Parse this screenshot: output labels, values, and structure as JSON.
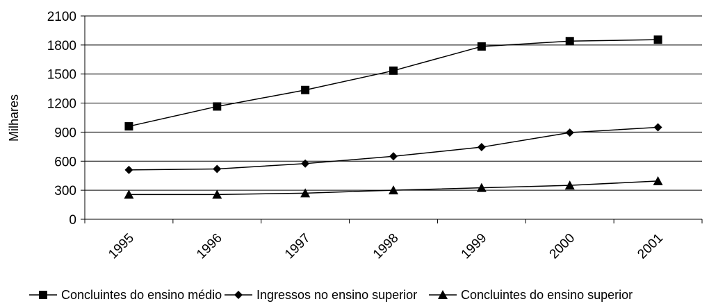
{
  "chart_data": {
    "type": "line",
    "categories": [
      "1995",
      "1996",
      "1997",
      "1998",
      "1999",
      "2000",
      "2001"
    ],
    "series": [
      {
        "name": "Concluintes do ensino médio",
        "marker": "square",
        "values": [
          960,
          1165,
          1335,
          1535,
          1785,
          1840,
          1855
        ]
      },
      {
        "name": "Ingressos no ensino superior",
        "marker": "diamond",
        "values": [
          510,
          520,
          575,
          650,
          745,
          895,
          950
        ]
      },
      {
        "name": "Concluintes do ensino superior",
        "marker": "triangle",
        "values": [
          255,
          255,
          270,
          300,
          325,
          350,
          395
        ]
      }
    ],
    "ylabel": "Milhares",
    "xlabel": "",
    "ylim": [
      0,
      2100
    ],
    "yticks": [
      0,
      300,
      600,
      900,
      1200,
      1500,
      1800,
      2100
    ],
    "grid": "horizontal",
    "legend": "bottom",
    "colors": {
      "line": "#000000",
      "grid": "#000000"
    }
  }
}
